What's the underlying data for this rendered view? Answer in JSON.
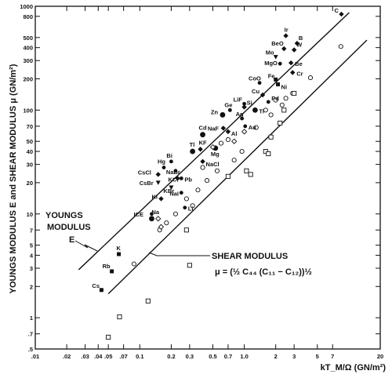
{
  "chart_data": {
    "type": "scatter",
    "xscale": "log",
    "yscale": "log",
    "xlim": [
      0.01,
      20
    ],
    "ylim": [
      0.5,
      1000
    ],
    "grid": false,
    "xlabel": "kT_M/Ω  (GN/m²)",
    "ylabel": "YOUNGS MODULUS E and SHEAR MODULUS μ (GN/m²)",
    "x_ticks": [
      {
        "v": 0.01,
        "t": ".01"
      },
      {
        "v": 0.02,
        "t": ".02"
      },
      {
        "v": 0.03,
        "t": ".03"
      },
      {
        "v": 0.04,
        "t": ".04"
      },
      {
        "v": 0.05,
        "t": ".05"
      },
      {
        "v": 0.07,
        "t": ".07"
      },
      {
        "v": 0.1,
        "t": "0.1"
      },
      {
        "v": 0.2,
        "t": "0.2"
      },
      {
        "v": 0.3,
        "t": "0.3"
      },
      {
        "v": 0.5,
        "t": "0.5"
      },
      {
        "v": 0.7,
        "t": "0.7"
      },
      {
        "v": 1,
        "t": "1.0"
      },
      {
        "v": 2,
        "t": "2"
      },
      {
        "v": 3,
        "t": "3"
      },
      {
        "v": 5,
        "t": "5"
      },
      {
        "v": 7,
        "t": "7"
      },
      {
        "v": 20,
        "t": "20"
      }
    ],
    "y_ticks": [
      {
        "v": 1000,
        "t": "1000"
      },
      {
        "v": 800,
        "t": "800"
      },
      {
        "v": 500,
        "t": "500"
      },
      {
        "v": 400,
        "t": "400"
      },
      {
        "v": 300,
        "t": "300"
      },
      {
        "v": 200,
        "t": "200"
      },
      {
        "v": 100,
        "t": "100"
      },
      {
        "v": 70,
        "t": "70"
      },
      {
        "v": 50,
        "t": "50"
      },
      {
        "v": 40,
        "t": "40"
      },
      {
        "v": 30,
        "t": "30"
      },
      {
        "v": 20,
        "t": "20"
      },
      {
        "v": 10,
        "t": "10"
      },
      {
        "v": 7,
        "t": "7"
      },
      {
        "v": 5,
        "t": "5"
      },
      {
        "v": 4,
        "t": "4"
      },
      {
        "v": 3,
        "t": "3"
      },
      {
        "v": 2,
        "t": "2"
      },
      {
        "v": 1,
        "t": "1"
      },
      {
        "v": 0.7,
        "t": ".7"
      },
      {
        "v": 0.5,
        "t": ".5"
      }
    ],
    "fit_lines": [
      {
        "x": [
          0.026,
          10.1
        ],
        "y": [
          2.9,
          870
        ]
      },
      {
        "x": [
          0.05,
          14.9
        ],
        "y": [
          1.7,
          472
        ]
      }
    ],
    "annotations": {
      "youngs": [
        "YOUNGS",
        "MODULUS",
        "E"
      ],
      "shear": "SHEAR MODULUS",
      "shear_eq": "μ = (½ C₄₄ (C₁₁ − C₁₂))½"
    },
    "youngs_points": [
      {
        "l": "C",
        "x": 8.5,
        "y": 840,
        "m": "d"
      },
      {
        "l": "Ir",
        "x": 2.5,
        "y": 520,
        "m": "d"
      },
      {
        "l": "B",
        "x": 3.2,
        "y": 440,
        "m": "d"
      },
      {
        "l": "BeO",
        "x": 2.4,
        "y": 390,
        "m": "d"
      },
      {
        "l": "W",
        "x": 3.0,
        "y": 380,
        "m": "d"
      },
      {
        "l": "Mo",
        "x": 2.0,
        "y": 325,
        "m": "t"
      },
      {
        "l": "MgO",
        "x": 2.2,
        "y": 280,
        "m": "c"
      },
      {
        "l": "Be",
        "x": 2.8,
        "y": 285,
        "m": "d"
      },
      {
        "l": "Cr",
        "x": 2.9,
        "y": 230,
        "m": "d"
      },
      {
        "l": "CoO",
        "x": 1.4,
        "y": 183,
        "m": "c"
      },
      {
        "l": "Fe",
        "x": 2.0,
        "y": 197,
        "m": "s"
      },
      {
        "l": "Ni",
        "x": 2.1,
        "y": 177,
        "m": "s"
      },
      {
        "l": "Cu",
        "x": 1.5,
        "y": 140,
        "m": "d"
      },
      {
        "l": "LiF",
        "x": 1.0,
        "y": 115,
        "m": "c"
      },
      {
        "l": "Pd",
        "x": 1.7,
        "y": 120,
        "m": "c"
      },
      {
        "l": "Ge",
        "x": 0.73,
        "y": 100,
        "m": "c"
      },
      {
        "l": "Si",
        "x": 1.0,
        "y": 107,
        "m": "d"
      },
      {
        "l": "Ti",
        "x": 1.27,
        "y": 100,
        "m": "C"
      },
      {
        "l": "Zn",
        "x": 0.62,
        "y": 90,
        "m": "C"
      },
      {
        "l": "Ag",
        "x": 0.95,
        "y": 83,
        "m": "c"
      },
      {
        "l": "Au",
        "x": 1.02,
        "y": 70,
        "m": "c"
      },
      {
        "l": "NaF",
        "x": 0.63,
        "y": 67,
        "m": "d"
      },
      {
        "l": "Al",
        "x": 0.7,
        "y": 62,
        "m": "d"
      },
      {
        "l": "Cd",
        "x": 0.4,
        "y": 58,
        "m": "C"
      },
      {
        "l": "Tl",
        "x": 0.32,
        "y": 40,
        "m": "C"
      },
      {
        "l": "KF",
        "x": 0.38,
        "y": 42,
        "m": "d"
      },
      {
        "l": "Mg",
        "x": 0.53,
        "y": 43,
        "m": "C"
      },
      {
        "l": "Bi",
        "x": 0.2,
        "y": 32,
        "m": "c"
      },
      {
        "l": "NaCl",
        "x": 0.4,
        "y": 32,
        "m": "d"
      },
      {
        "l": "Hg",
        "x": 0.17,
        "y": 28,
        "m": "c"
      },
      {
        "l": "NaBr",
        "x": 0.22,
        "y": 26,
        "m": "c"
      },
      {
        "l": "CsCl",
        "x": 0.15,
        "y": 24,
        "m": "d"
      },
      {
        "l": "KCl",
        "x": 0.23,
        "y": 22,
        "m": "d"
      },
      {
        "l": "Pb",
        "x": 0.25,
        "y": 22,
        "m": "c"
      },
      {
        "l": "CsBr",
        "x": 0.15,
        "y": 20,
        "m": "t"
      },
      {
        "l": "KBr",
        "x": 0.2,
        "y": 18,
        "m": "t"
      },
      {
        "l": "NaI",
        "x": 0.25,
        "y": 16,
        "m": "c"
      },
      {
        "l": "KI",
        "x": 0.16,
        "y": 14,
        "m": "d"
      },
      {
        "l": "Li",
        "x": 0.27,
        "y": 11.5,
        "m": "c"
      },
      {
        "l": "ICE",
        "x": 0.13,
        "y": 10,
        "m": "c"
      },
      {
        "l": "Na",
        "x": 0.13,
        "y": 9,
        "m": "C"
      },
      {
        "l": "K",
        "x": 0.063,
        "y": 4.1,
        "m": "s"
      },
      {
        "l": "Rb",
        "x": 0.054,
        "y": 2.8,
        "m": "s"
      },
      {
        "l": "Cs",
        "x": 0.043,
        "y": 1.85,
        "m": "s"
      }
    ],
    "shear_points": [
      {
        "x": 0.088,
        "y": 3.3,
        "m": "o"
      },
      {
        "x": 0.18,
        "y": 8.2,
        "m": "o"
      },
      {
        "x": 0.22,
        "y": 10,
        "m": "o"
      },
      {
        "x": 0.28,
        "y": 14,
        "m": "o"
      },
      {
        "x": 0.36,
        "y": 17,
        "m": "o"
      },
      {
        "x": 0.44,
        "y": 21,
        "m": "o"
      },
      {
        "x": 0.55,
        "y": 26,
        "m": "o"
      },
      {
        "x": 0.8,
        "y": 33,
        "m": "o"
      },
      {
        "x": 0.95,
        "y": 40,
        "m": "o"
      },
      {
        "x": 0.6,
        "y": 48,
        "m": "o"
      },
      {
        "x": 0.7,
        "y": 52,
        "m": "o"
      },
      {
        "x": 0.4,
        "y": 28,
        "m": "o"
      },
      {
        "x": 1.3,
        "y": 68,
        "m": "o"
      },
      {
        "x": 1.8,
        "y": 90,
        "m": "o"
      },
      {
        "x": 2.3,
        "y": 112,
        "m": "o"
      },
      {
        "x": 2.9,
        "y": 145,
        "m": "o"
      },
      {
        "x": 4.3,
        "y": 205,
        "m": "o"
      },
      {
        "x": 8.4,
        "y": 410,
        "m": "o"
      },
      {
        "x": 2.0,
        "y": 125,
        "m": "o"
      },
      {
        "x": 1.6,
        "y": 100,
        "m": "o"
      },
      {
        "x": 2.5,
        "y": 130,
        "m": "o"
      },
      {
        "x": 0.32,
        "y": 12,
        "m": "o"
      },
      {
        "x": 0.155,
        "y": 7,
        "m": "o"
      },
      {
        "x": 0.16,
        "y": 7.5,
        "m": "dd"
      },
      {
        "x": 0.15,
        "y": 9,
        "m": "dd"
      },
      {
        "x": 0.5,
        "y": 44,
        "m": "dd"
      },
      {
        "x": 0.8,
        "y": 50,
        "m": "dd"
      },
      {
        "x": 1.0,
        "y": 62,
        "m": "dd"
      },
      {
        "x": 1.6,
        "y": 40,
        "m": "sq"
      },
      {
        "x": 1.7,
        "y": 38,
        "m": "sq"
      },
      {
        "x": 1.05,
        "y": 26,
        "m": "sq"
      },
      {
        "x": 1.15,
        "y": 24,
        "m": "sq"
      },
      {
        "x": 0.7,
        "y": 23,
        "m": "sq"
      },
      {
        "x": 1.8,
        "y": 55,
        "m": "sq"
      },
      {
        "x": 2.2,
        "y": 75,
        "m": "sq"
      },
      {
        "x": 2.4,
        "y": 100,
        "m": "sq"
      },
      {
        "x": 3.0,
        "y": 145,
        "m": "sq"
      },
      {
        "x": 0.28,
        "y": 7,
        "m": "sq"
      },
      {
        "x": 0.3,
        "y": 3.2,
        "m": "sq"
      },
      {
        "x": 0.12,
        "y": 1.45,
        "m": "sq"
      },
      {
        "x": 0.064,
        "y": 1.02,
        "m": "sq"
      },
      {
        "x": 0.05,
        "y": 0.65,
        "m": "sq"
      }
    ]
  }
}
